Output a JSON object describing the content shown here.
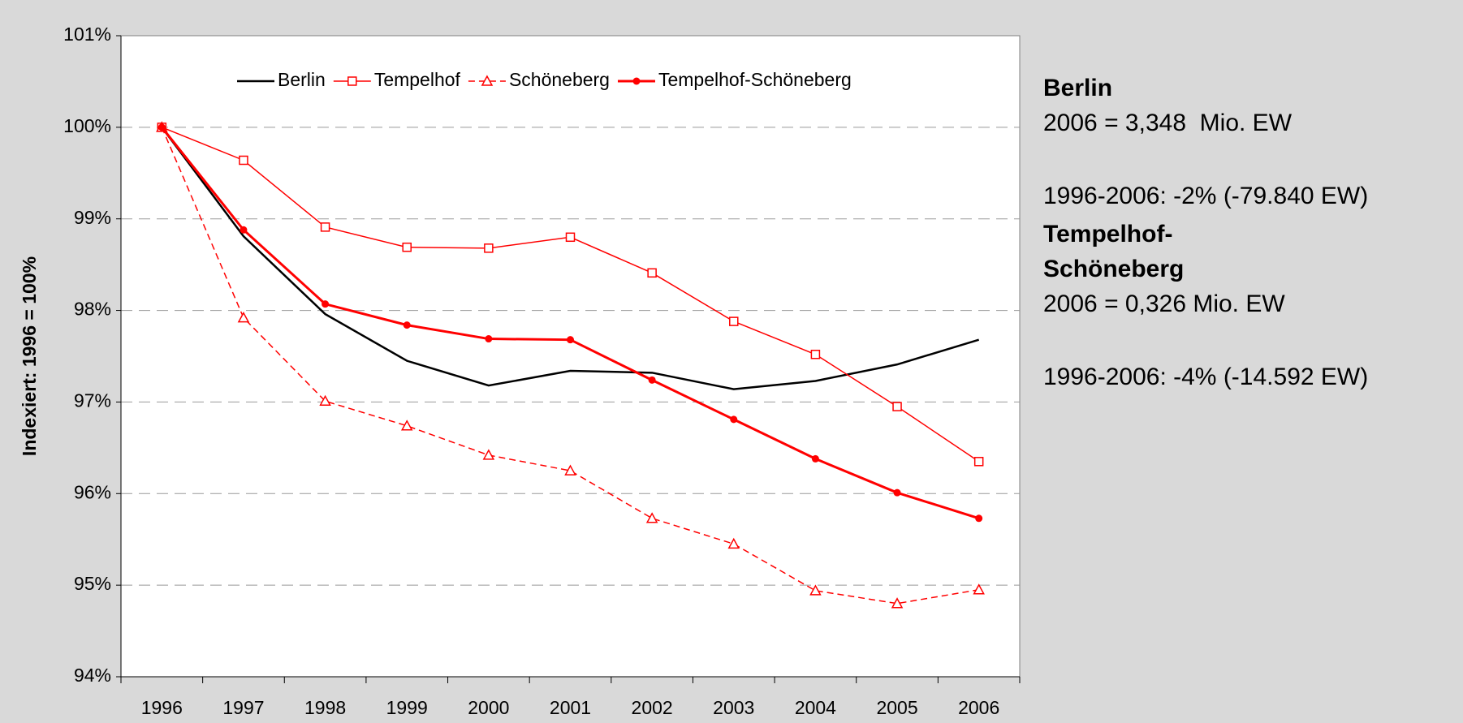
{
  "chart_data": {
    "type": "line",
    "y_label": "Indexiert: 1996 = 100%",
    "categories": [
      "1996",
      "1997",
      "1998",
      "1999",
      "2000",
      "2001",
      "2002",
      "2003",
      "2004",
      "2005",
      "2006"
    ],
    "series": [
      {
        "name": "Berlin",
        "color": "#000000",
        "marker": "none",
        "dash": false,
        "values": [
          100,
          98.81,
          97.96,
          97.45,
          97.18,
          97.34,
          97.32,
          97.14,
          97.23,
          97.41,
          97.68
        ]
      },
      {
        "name": "Tempelhof",
        "color": "#ff0000",
        "marker": "square",
        "dash": false,
        "values": [
          100,
          99.64,
          98.91,
          98.69,
          98.68,
          98.8,
          98.41,
          97.88,
          97.52,
          96.95,
          96.35
        ]
      },
      {
        "name": "Schöneberg",
        "color": "#ff0000",
        "marker": "triangle",
        "dash": true,
        "values": [
          100,
          97.92,
          97.01,
          96.74,
          96.42,
          96.25,
          95.73,
          95.45,
          94.94,
          94.8,
          94.95
        ]
      },
      {
        "name": "Tempelhof-Schöneberg",
        "color": "#ff0000",
        "marker": "circle",
        "dash": false,
        "values": [
          100,
          98.88,
          98.07,
          97.84,
          97.69,
          97.68,
          97.24,
          96.81,
          96.38,
          96.01,
          95.73
        ]
      }
    ],
    "ylim": [
      94,
      101
    ],
    "yticks": [
      {
        "value": 94,
        "label": "94%"
      },
      {
        "value": 95,
        "label": "95%"
      },
      {
        "value": 96,
        "label": "96%"
      },
      {
        "value": 97,
        "label": "97%"
      },
      {
        "value": 98,
        "label": "98%"
      },
      {
        "value": 99,
        "label": "99%"
      },
      {
        "value": 100,
        "label": "100%"
      },
      {
        "value": 101,
        "label": "101%"
      }
    ],
    "grid": true,
    "legend": "top",
    "annotations": [
      {
        "title": [
          "Berlin"
        ],
        "lines": [
          "2006 = 3,348  Mio. EW",
          "1996-2006: -2% (-79.840 EW)"
        ]
      },
      {
        "title": [
          "Tempelhof-",
          "Schöneberg"
        ],
        "lines": [
          "2006 = 0,326 Mio. EW",
          "1996-2006: -4% (-14.592 EW)"
        ]
      }
    ]
  }
}
